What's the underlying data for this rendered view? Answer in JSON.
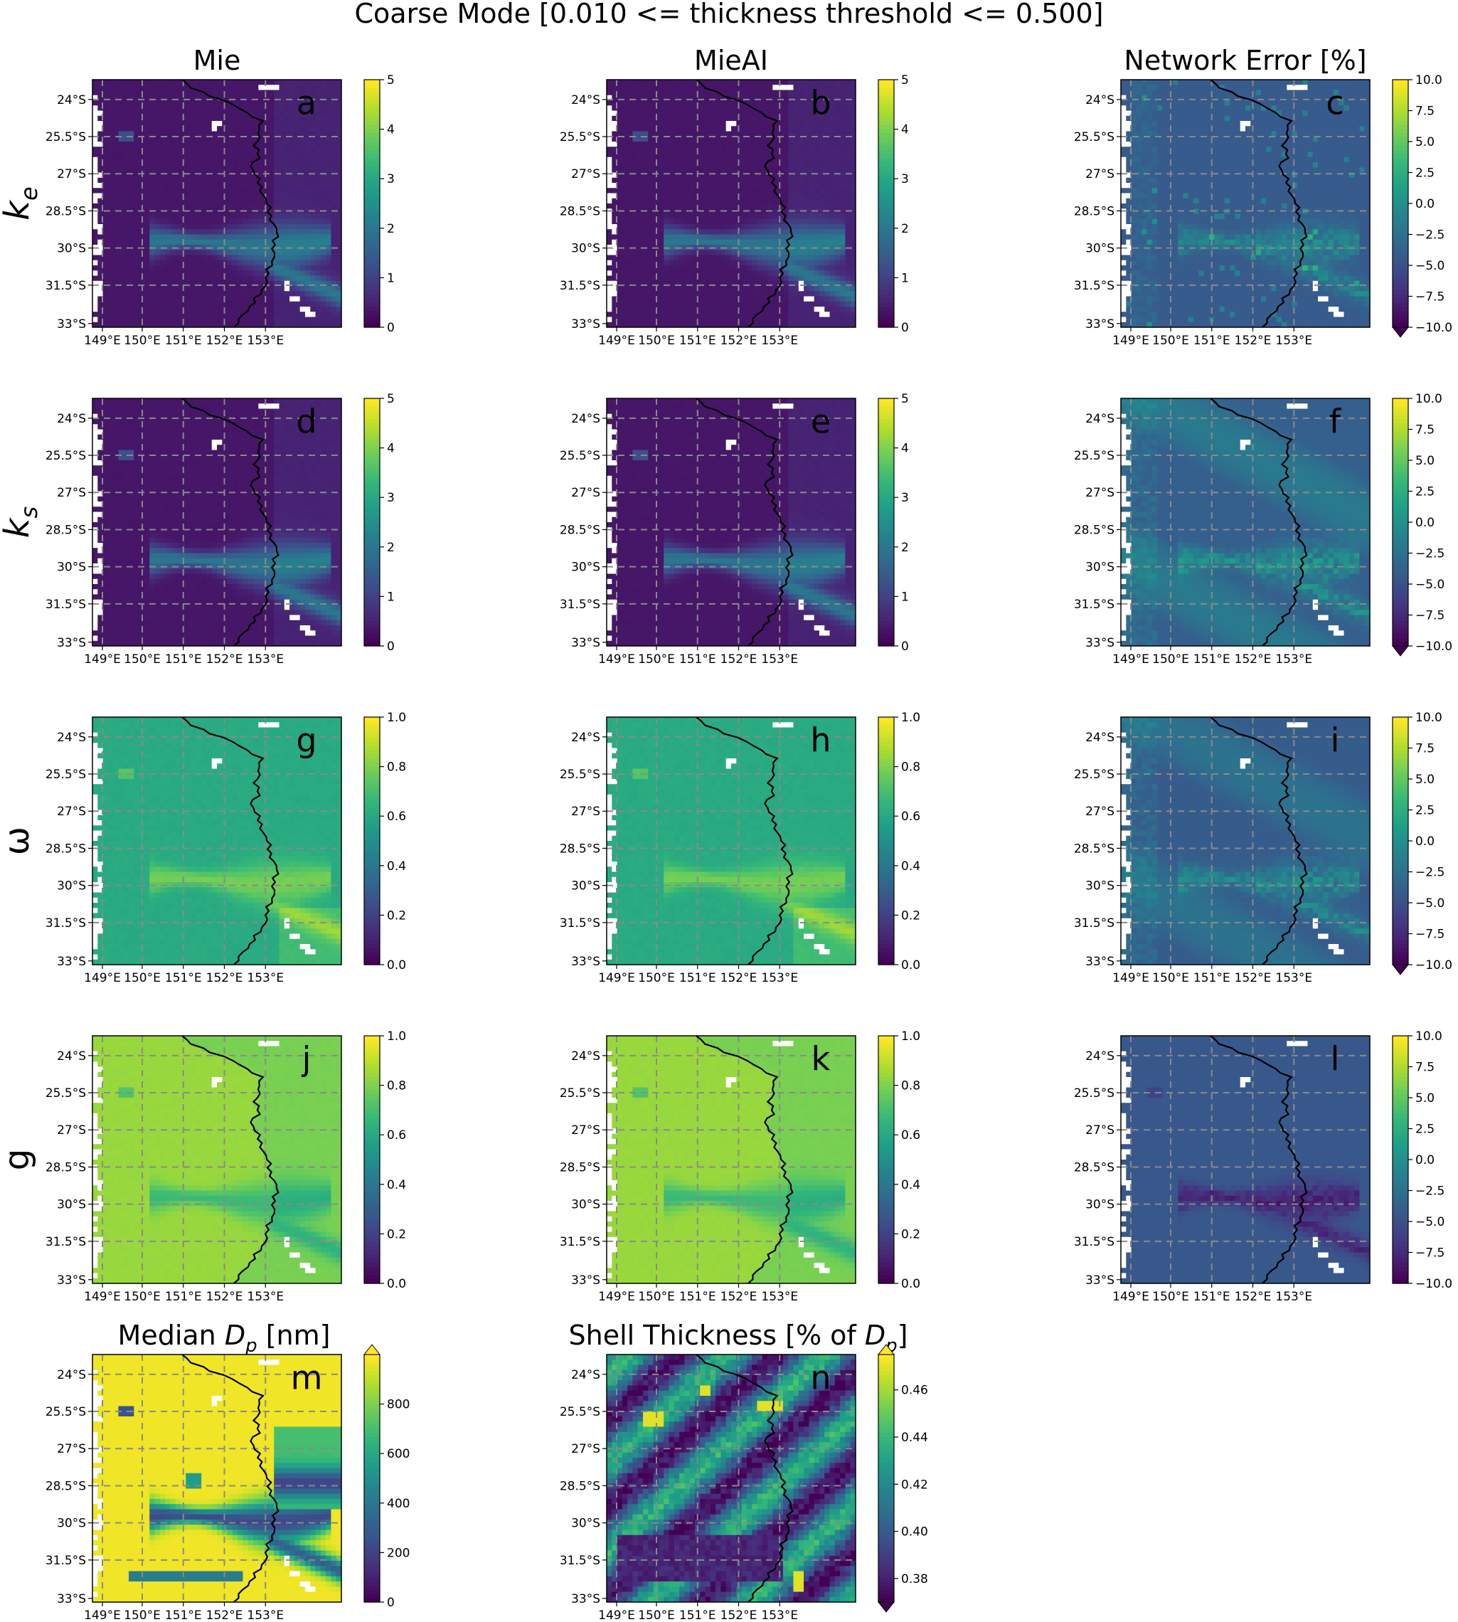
{
  "figure": {
    "title": "Coarse Mode [0.010 <= thickness threshold <= 0.500]",
    "column_titles": [
      "Mie",
      "MieAI",
      "Network Error [%]"
    ],
    "row_labels": [
      {
        "base": "k",
        "sub": "e"
      },
      {
        "base": "k",
        "sub": "s"
      },
      {
        "base": "ω",
        "sub": ""
      },
      {
        "base": "g",
        "sub": ""
      }
    ],
    "bottom_titles": [
      {
        "pre": "Median ",
        "base": "D",
        "sub": "p",
        "post": " [nm]"
      },
      {
        "pre": "Shell Thickness [% of ",
        "base": "D",
        "sub": "p",
        "post": "]"
      }
    ],
    "colors": {
      "colormap": "viridis",
      "panel_label": "#ff00ff",
      "grid": "#8a8a8a",
      "coast": "#000000",
      "nodata": "#ffffff"
    }
  },
  "chart_data": [
    {
      "label": "a",
      "type": "heatmap",
      "colorbar_ticks": [
        "0",
        "1",
        "2",
        "3",
        "4",
        "5"
      ],
      "clim": [
        0,
        5
      ],
      "field": "ke",
      "extend": "neither"
    },
    {
      "label": "b",
      "type": "heatmap",
      "colorbar_ticks": [
        "0",
        "1",
        "2",
        "3",
        "4",
        "5"
      ],
      "clim": [
        0,
        5
      ],
      "field": "ke",
      "extend": "neither"
    },
    {
      "label": "c",
      "type": "heatmap",
      "colorbar_ticks": [
        "−10.0",
        "−7.5",
        "−5.0",
        "−2.5",
        "0.0",
        "2.5",
        "5.0",
        "7.5",
        "10.0"
      ],
      "clim": [
        -10,
        10
      ],
      "field": "err1",
      "extend": "min"
    },
    {
      "label": "d",
      "type": "heatmap",
      "colorbar_ticks": [
        "0",
        "1",
        "2",
        "3",
        "4",
        "5"
      ],
      "clim": [
        0,
        5
      ],
      "field": "ks",
      "extend": "neither"
    },
    {
      "label": "e",
      "type": "heatmap",
      "colorbar_ticks": [
        "0",
        "1",
        "2",
        "3",
        "4",
        "5"
      ],
      "clim": [
        0,
        5
      ],
      "field": "ks",
      "extend": "neither"
    },
    {
      "label": "f",
      "type": "heatmap",
      "colorbar_ticks": [
        "−10.0",
        "−7.5",
        "−5.0",
        "−2.5",
        "0.0",
        "2.5",
        "5.0",
        "7.5",
        "10.0"
      ],
      "clim": [
        -10,
        10
      ],
      "field": "err2",
      "extend": "min"
    },
    {
      "label": "g",
      "type": "heatmap",
      "colorbar_ticks": [
        "0.0",
        "0.2",
        "0.4",
        "0.6",
        "0.8",
        "1.0"
      ],
      "clim": [
        0,
        1
      ],
      "field": "omega",
      "extend": "neither"
    },
    {
      "label": "h",
      "type": "heatmap",
      "colorbar_ticks": [
        "0.0",
        "0.2",
        "0.4",
        "0.6",
        "0.8",
        "1.0"
      ],
      "clim": [
        0,
        1
      ],
      "field": "omega",
      "extend": "neither"
    },
    {
      "label": "i",
      "type": "heatmap",
      "colorbar_ticks": [
        "−10.0",
        "−7.5",
        "−5.0",
        "−2.5",
        "0.0",
        "2.5",
        "5.0",
        "7.5",
        "10.0"
      ],
      "clim": [
        -10,
        10
      ],
      "field": "err3",
      "extend": "min"
    },
    {
      "label": "j",
      "type": "heatmap",
      "colorbar_ticks": [
        "0.0",
        "0.2",
        "0.4",
        "0.6",
        "0.8",
        "1.0"
      ],
      "clim": [
        0,
        1
      ],
      "field": "gasym",
      "extend": "neither"
    },
    {
      "label": "k",
      "type": "heatmap",
      "colorbar_ticks": [
        "0.0",
        "0.2",
        "0.4",
        "0.6",
        "0.8",
        "1.0"
      ],
      "clim": [
        0,
        1
      ],
      "field": "gasym",
      "extend": "neither"
    },
    {
      "label": "l",
      "type": "heatmap",
      "colorbar_ticks": [
        "−10.0",
        "−7.5",
        "−5.0",
        "−2.5",
        "0.0",
        "2.5",
        "5.0",
        "7.5",
        "10.0"
      ],
      "clim": [
        -10,
        10
      ],
      "field": "err4",
      "extend": "neither"
    },
    {
      "label": "m",
      "type": "heatmap",
      "colorbar_ticks": [
        "0",
        "200",
        "400",
        "600",
        "800"
      ],
      "clim": [
        0,
        1000
      ],
      "field": "dp",
      "extend": "max"
    },
    {
      "label": "n",
      "type": "heatmap",
      "colorbar_ticks": [
        "0.38",
        "0.40",
        "0.42",
        "0.44",
        "0.46"
      ],
      "clim": [
        0.37,
        0.475
      ],
      "field": "shell",
      "extend": "both"
    }
  ],
  "axes": {
    "lat_ticks": [
      "24°S",
      "25.5°S",
      "27°S",
      "28.5°S",
      "30°S",
      "31.5°S",
      "33°S"
    ],
    "lon_ticks": [
      "149°E",
      "150°E",
      "151°E",
      "152°E",
      "153°E"
    ]
  }
}
